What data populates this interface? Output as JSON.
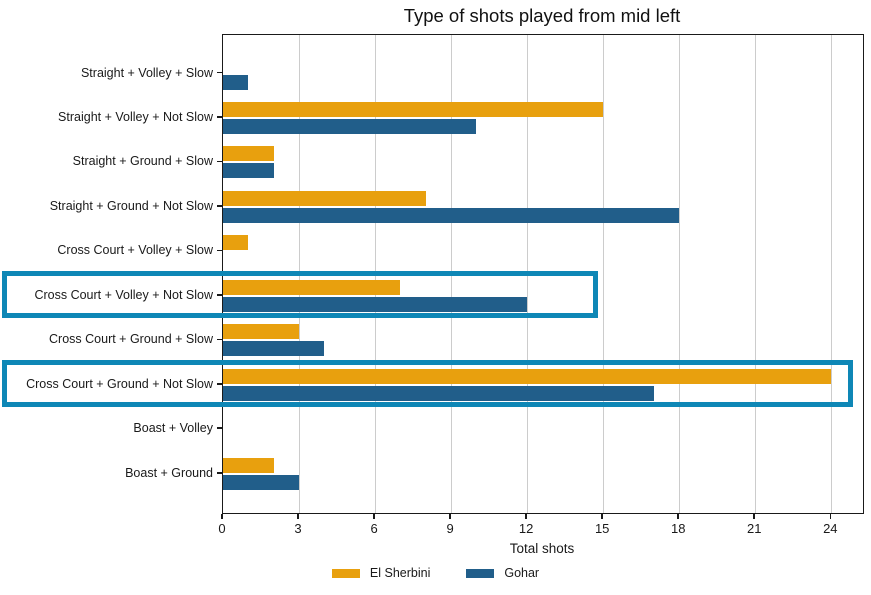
{
  "chart_data": {
    "type": "bar",
    "orientation": "horizontal",
    "title": "Type of shots played from mid left",
    "xlabel": "Total shots",
    "categories": [
      "Straight + Volley + Slow",
      "Straight + Volley + Not Slow",
      "Straight + Ground + Slow",
      "Straight + Ground + Not Slow",
      "Cross Court + Volley + Slow",
      "Cross Court + Volley + Not Slow",
      "Cross Court + Ground + Slow",
      "Cross Court + Ground + Not Slow",
      "Boast + Volley",
      "Boast + Ground"
    ],
    "series": [
      {
        "name": "El Sherbini",
        "color": "#E8A00E",
        "values": [
          0,
          15,
          2,
          8,
          1,
          7,
          3,
          24,
          0,
          2
        ]
      },
      {
        "name": "Gohar",
        "color": "#215E8A",
        "values": [
          1,
          10,
          2,
          18,
          0,
          12,
          4,
          17,
          0,
          3
        ]
      }
    ],
    "xticks": [
      0,
      3,
      6,
      9,
      12,
      15,
      18,
      21,
      24
    ],
    "xlim": [
      0,
      25.25
    ],
    "grid": "vertical-only",
    "grid_color": "#cccccc",
    "legend_position": "bottom-center",
    "highlights": {
      "color": "#0E87B6",
      "categories": [
        "Cross Court + Volley + Not Slow",
        "Cross Court + Ground + Not Slow"
      ]
    }
  }
}
